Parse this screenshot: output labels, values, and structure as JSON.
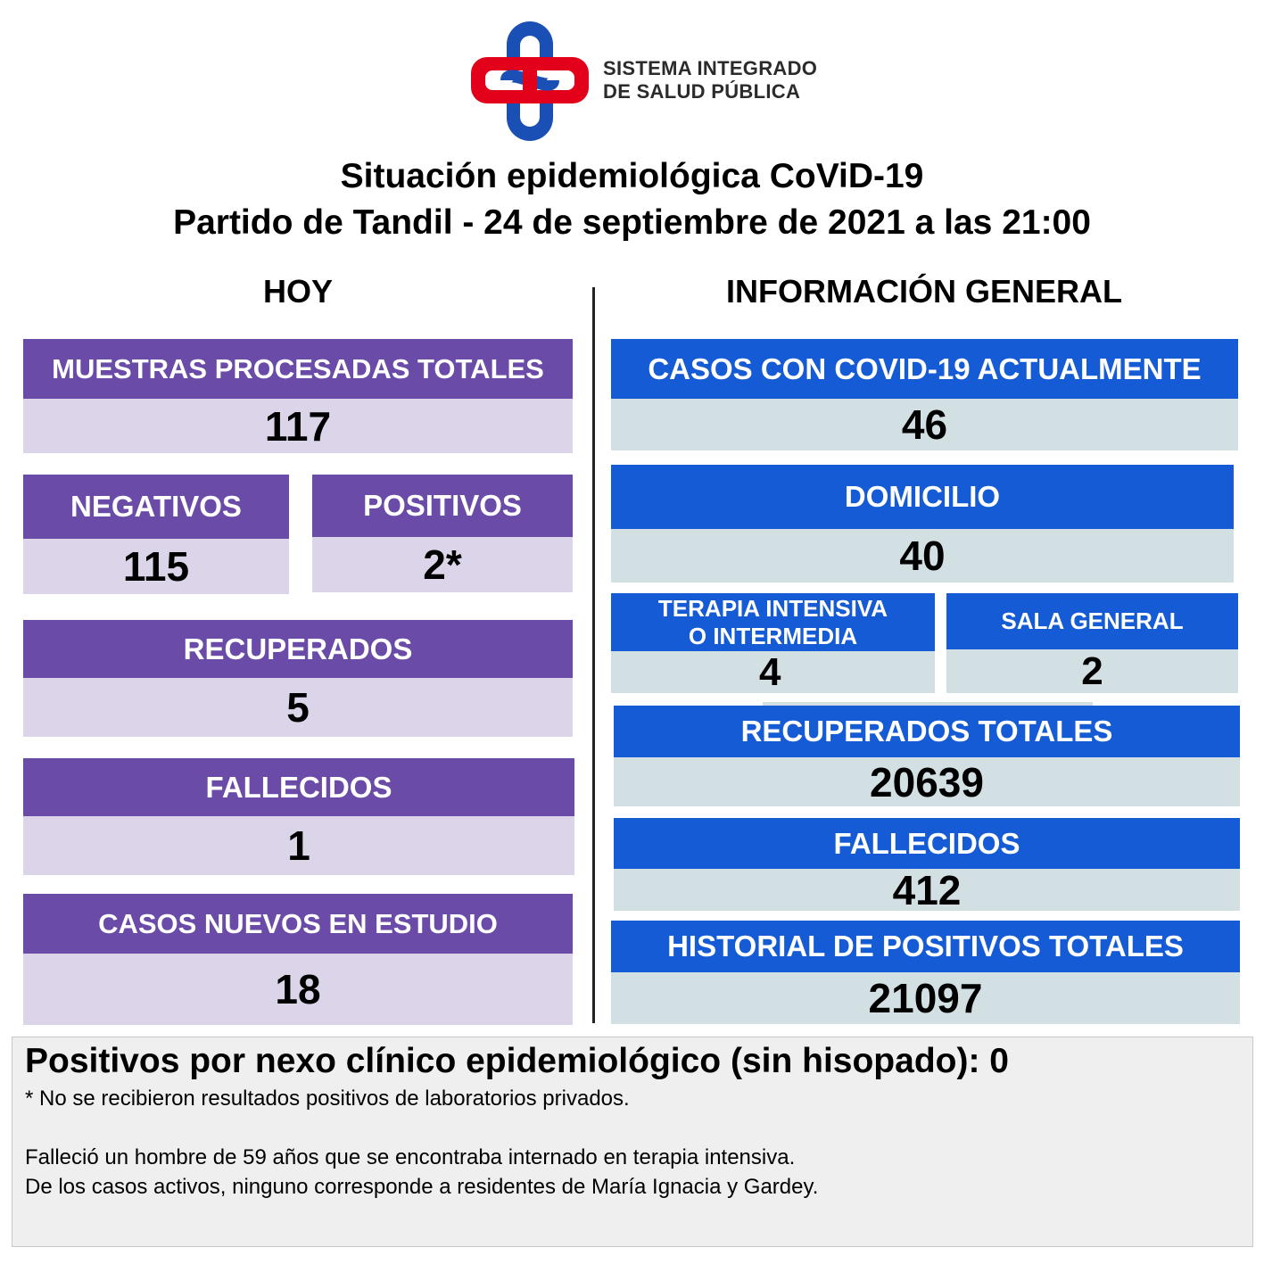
{
  "header": {
    "logo_line1": "SISTEMA INTEGRADO",
    "logo_line2": "DE SALUD PÚBLICA",
    "title_line1": "Situación epidemiológica CoViD-19",
    "title_line2": "Partido de Tandil - 24 de septiembre de 2021 a las 21:00"
  },
  "colors": {
    "purple": "#6a4ba7",
    "blue": "#155bd5",
    "lavender": "#dcd4e9",
    "grey_blue": "#d3e0e3",
    "logo_red": "#e2001a",
    "logo_blue": "#1a4fb5"
  },
  "hoy": {
    "title": "HOY",
    "muestras_label": "MUESTRAS PROCESADAS TOTALES",
    "muestras_value": "117",
    "negativos_label": "NEGATIVOS",
    "negativos_value": "115",
    "positivos_label": "POSITIVOS",
    "positivos_value": "2*",
    "recuperados_label": "RECUPERADOS",
    "recuperados_value": "5",
    "fallecidos_label": "FALLECIDOS",
    "fallecidos_value": "1",
    "estudio_label": "CASOS NUEVOS EN ESTUDIO",
    "estudio_value": "18"
  },
  "general": {
    "title": "INFORMACIÓN GENERAL",
    "actuales_label": "CASOS CON COVID-19 ACTUALMENTE",
    "actuales_value": "46",
    "domicilio_label": "DOMICILIO",
    "domicilio_value": "40",
    "terapia_label_1": "TERAPIA INTENSIVA",
    "terapia_label_2": "O INTERMEDIA",
    "terapia_value": "4",
    "sala_label": "SALA GENERAL",
    "sala_value": "2",
    "recuperados_label": "RECUPERADOS TOTALES",
    "recuperados_value": "20639",
    "fallecidos_label": "FALLECIDOS",
    "fallecidos_value": "412",
    "historial_label": "HISTORIAL DE POSITIVOS TOTALES",
    "historial_value": "21097"
  },
  "notes": {
    "nexo": "Positivos por nexo clínico epidemiológico (sin hisopado): 0",
    "footnote": "* No se recibieron resultados positivos de laboratorios privados.",
    "line1": "Falleció un hombre de 59 años que se encontraba internado en terapia intensiva.",
    "line2": "De los casos activos, ninguno corresponde a residentes de María Ignacia y Gardey."
  }
}
